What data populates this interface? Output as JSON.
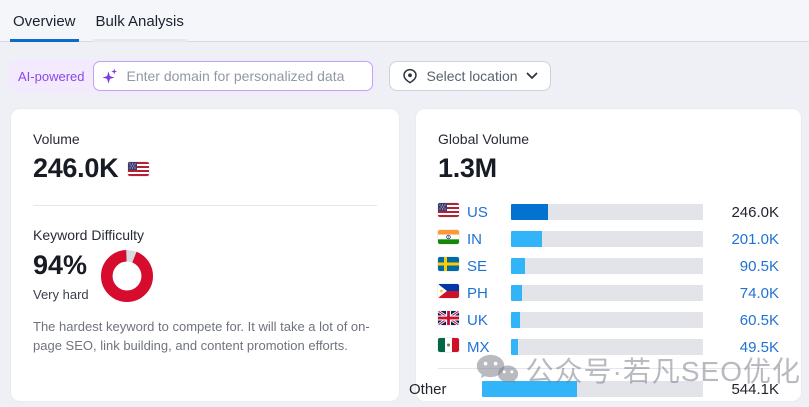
{
  "tabs": {
    "overview": "Overview",
    "bulk": "Bulk Analysis"
  },
  "toolbar": {
    "ai_badge": "AI-powered",
    "domain_placeholder": "Enter domain for personalized data",
    "location_label": "Select location"
  },
  "volume_card": {
    "title": "Volume",
    "value": "246.0K",
    "flag": "us",
    "kd_title": "Keyword Difficulty",
    "kd_value": "94%",
    "kd_percent": 94,
    "kd_level": "Very hard",
    "kd_description": "The hardest keyword to compete for. It will take a lot of on-page SEO, link building, and content promotion efforts."
  },
  "global_card": {
    "title": "Global Volume",
    "total": "1.3M",
    "rows": [
      {
        "label": "US",
        "flag": "us",
        "value": "246.0K",
        "value_num": 246000,
        "bar": "dark",
        "label_link": true,
        "value_blue": false,
        "divider_before": false
      },
      {
        "label": "IN",
        "flag": "in",
        "value": "201.0K",
        "value_num": 201000,
        "bar": "light",
        "label_link": true,
        "value_blue": true,
        "divider_before": false
      },
      {
        "label": "SE",
        "flag": "se",
        "value": "90.5K",
        "value_num": 90500,
        "bar": "light",
        "label_link": true,
        "value_blue": true,
        "divider_before": false
      },
      {
        "label": "PH",
        "flag": "ph",
        "value": "74.0K",
        "value_num": 74000,
        "bar": "light",
        "label_link": true,
        "value_blue": true,
        "divider_before": false
      },
      {
        "label": "UK",
        "flag": "gb",
        "value": "60.5K",
        "value_num": 60500,
        "bar": "light",
        "label_link": true,
        "value_blue": true,
        "divider_before": false
      },
      {
        "label": "MX",
        "flag": "mx",
        "value": "49.5K",
        "value_num": 49500,
        "bar": "light",
        "label_link": true,
        "value_blue": true,
        "divider_before": false
      },
      {
        "label": "Other",
        "flag": null,
        "value": "544.1K",
        "value_num": 544100,
        "bar": "light",
        "label_link": false,
        "value_blue": false,
        "divider_before": true
      }
    ]
  },
  "watermark": {
    "icon": "wechat-icon",
    "text": "公众号·若凡SEO优化"
  },
  "colors": {
    "accent_blue": "#0d6bc8",
    "link_blue": "#1f72d4",
    "bar_dark": "#0473cf",
    "bar_light": "#31b4f8",
    "bar_track": "#e2e4ea",
    "kd_red": "#d60b2e",
    "kd_gap_gray": "#d8dade",
    "ai_purple": "#8a49e6"
  },
  "chart_data": [
    {
      "type": "bar",
      "orientation": "horizontal",
      "title": "Global Volume",
      "total_label": "1.3M",
      "categories": [
        "US",
        "IN",
        "SE",
        "PH",
        "UK",
        "MX",
        "Other"
      ],
      "values": [
        246000,
        201000,
        90500,
        74000,
        60500,
        49500,
        544100
      ],
      "value_labels": [
        "246.0K",
        "201.0K",
        "90.5K",
        "74.0K",
        "60.5K",
        "49.5K",
        "544.1K"
      ],
      "bar_scale": "fraction of 1,265,600 total global volume",
      "legend": false,
      "grid": false
    },
    {
      "type": "donut",
      "title": "Keyword Difficulty",
      "value": 94,
      "max": 100,
      "label": "94%",
      "sublabel": "Very hard",
      "color": "#d60b2e"
    }
  ]
}
